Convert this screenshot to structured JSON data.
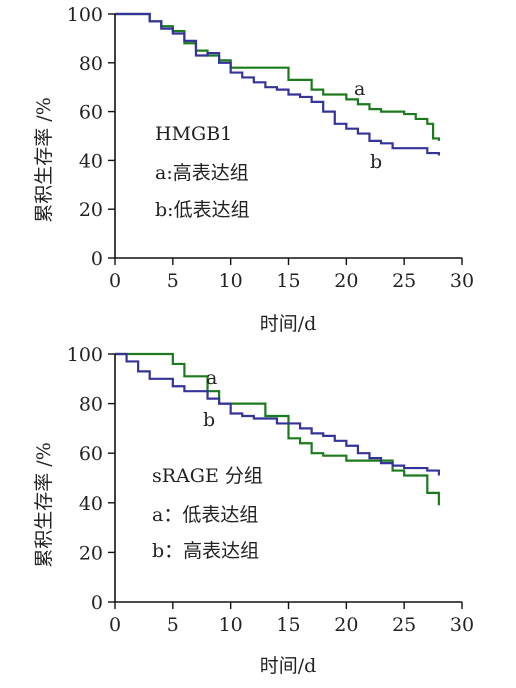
{
  "panels": [
    {
      "chart_data": {
        "type": "line",
        "step": true,
        "xlabel": "时间/d",
        "ylabel": "累积生存率 /%",
        "xlim": [
          0,
          30
        ],
        "ylim": [
          0,
          100
        ],
        "xticks": [
          0,
          5,
          10,
          15,
          20,
          25,
          30
        ],
        "yticks": [
          0,
          20,
          40,
          60,
          80,
          100
        ],
        "grid": false,
        "annotations": [
          "HMGB1",
          "a:高表达组",
          "b:低表达组"
        ],
        "series": [
          {
            "name": "a",
            "color": "#1b7a1b",
            "x": [
              0,
              2,
              3,
              4,
              5,
              6,
              7,
              8,
              9,
              10,
              13,
              15,
              16,
              17,
              18,
              20,
              21,
              22,
              23,
              24,
              25,
              26,
              27,
              27.5,
              28
            ],
            "y": [
              100,
              100,
              97,
              95,
              93,
              88,
              85,
              83,
              81,
              78,
              78,
              73,
              73,
              69,
              67,
              65,
              63,
              61,
              60,
              60,
              59,
              57,
              55,
              49,
              48
            ]
          },
          {
            "name": "b",
            "color": "#33339a",
            "x": [
              0,
              2,
              3,
              4,
              5,
              6,
              7,
              8,
              9,
              10,
              11,
              12,
              13,
              14,
              15,
              16,
              17,
              18,
              19,
              20,
              21,
              22,
              23,
              24,
              27,
              28
            ],
            "y": [
              100,
              100,
              97,
              94,
              92,
              89,
              83,
              84,
              80,
              76,
              74,
              72,
              70,
              69,
              67,
              66,
              64,
              60,
              55,
              53,
              51,
              48,
              47,
              45,
              43,
              42
            ]
          }
        ],
        "series_labels": [
          "a",
          "b"
        ]
      }
    },
    {
      "chart_data": {
        "type": "line",
        "step": true,
        "xlabel": "时间/d",
        "ylabel": "累积生存率 /%",
        "xlim": [
          0,
          30
        ],
        "ylim": [
          0,
          100
        ],
        "xticks": [
          0,
          5,
          10,
          15,
          20,
          25,
          30
        ],
        "yticks": [
          0,
          20,
          40,
          60,
          80,
          100
        ],
        "grid": false,
        "annotations": [
          "sRAGE 分组",
          "a：低表达组",
          "b：高表达组"
        ],
        "series": [
          {
            "name": "a",
            "color": "#1b7a1b",
            "x": [
              0,
              4,
              5,
              6,
              8,
              9,
              13,
              15,
              16,
              17,
              18,
              20,
              24,
              25,
              27,
              28
            ],
            "y": [
              100,
              100,
              96,
              91,
              85,
              80,
              75,
              66,
              64,
              60,
              59,
              57,
              53,
              51,
              44,
              39
            ]
          },
          {
            "name": "b",
            "color": "#33339a",
            "x": [
              0,
              1,
              2,
              3,
              5,
              6,
              8,
              9,
              10,
              11,
              12,
              14,
              16,
              17,
              18,
              19,
              20,
              21,
              22,
              23,
              24,
              25,
              27,
              28
            ],
            "y": [
              100,
              97,
              93,
              90,
              87,
              85,
              82,
              80,
              76,
              75,
              74,
              72,
              70,
              68,
              67,
              65,
              63,
              60,
              58,
              56,
              55,
              54,
              53,
              51
            ]
          }
        ],
        "series_labels": [
          "a",
          "b"
        ]
      }
    }
  ]
}
